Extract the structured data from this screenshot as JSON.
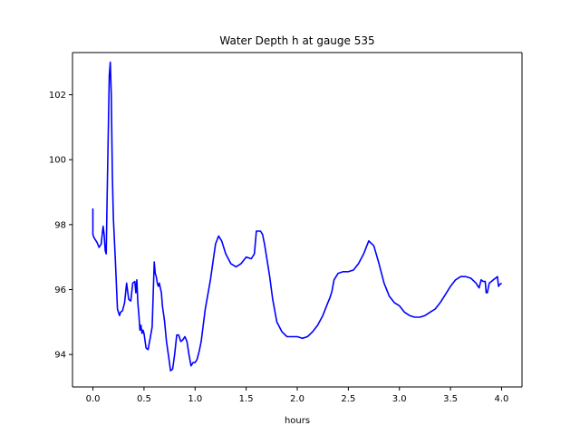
{
  "chart_data": {
    "type": "line",
    "title": "Water Depth h at gauge 535",
    "xlabel": "hours",
    "ylabel": "",
    "xlim": [
      -0.2,
      4.2
    ],
    "ylim": [
      93.0,
      103.3
    ],
    "xticks": [
      0.0,
      0.5,
      1.0,
      1.5,
      2.0,
      2.5,
      3.0,
      3.5,
      4.0
    ],
    "xtick_labels": [
      "0.0",
      "0.5",
      "1.0",
      "1.5",
      "2.0",
      "2.5",
      "3.0",
      "3.5",
      "4.0"
    ],
    "yticks": [
      94,
      96,
      98,
      100,
      102
    ],
    "ytick_labels": [
      "94",
      "96",
      "98",
      "100",
      "102"
    ],
    "grid": false,
    "series": [
      {
        "color": "#0000ff",
        "x": [
          0.0,
          0.0,
          0.01,
          0.04,
          0.06,
          0.08,
          0.1,
          0.11,
          0.12,
          0.13,
          0.14,
          0.16,
          0.17,
          0.18,
          0.19,
          0.2,
          0.22,
          0.24,
          0.26,
          0.27,
          0.29,
          0.31,
          0.33,
          0.35,
          0.37,
          0.39,
          0.41,
          0.42,
          0.43,
          0.44,
          0.45,
          0.46,
          0.47,
          0.48,
          0.49,
          0.5,
          0.52,
          0.54,
          0.56,
          0.58,
          0.6,
          0.61,
          0.62,
          0.63,
          0.64,
          0.65,
          0.66,
          0.67,
          0.68,
          0.7,
          0.72,
          0.74,
          0.76,
          0.78,
          0.8,
          0.82,
          0.84,
          0.86,
          0.88,
          0.9,
          0.92,
          0.94,
          0.96,
          0.98,
          1.0,
          1.02,
          1.04,
          1.06,
          1.1,
          1.15,
          1.2,
          1.23,
          1.26,
          1.3,
          1.35,
          1.4,
          1.45,
          1.5,
          1.55,
          1.58,
          1.6,
          1.62,
          1.64,
          1.66,
          1.68,
          1.7,
          1.73,
          1.76,
          1.8,
          1.85,
          1.9,
          1.95,
          2.0,
          2.05,
          2.1,
          2.15,
          2.2,
          2.25,
          2.3,
          2.32,
          2.34,
          2.36,
          2.4,
          2.45,
          2.5,
          2.55,
          2.6,
          2.65,
          2.7,
          2.75,
          2.8,
          2.85,
          2.9,
          2.95,
          3.0,
          3.05,
          3.1,
          3.15,
          3.2,
          3.25,
          3.3,
          3.35,
          3.4,
          3.45,
          3.5,
          3.55,
          3.6,
          3.65,
          3.7,
          3.75,
          3.77,
          3.78,
          3.8,
          3.82,
          3.84,
          3.85,
          3.86,
          3.88,
          3.9,
          3.92,
          3.94,
          3.96,
          3.97,
          3.98,
          4.0
        ],
        "y": [
          98.5,
          97.7,
          97.6,
          97.45,
          97.3,
          97.4,
          97.95,
          97.7,
          97.2,
          97.1,
          99.0,
          102.6,
          103.0,
          102.0,
          99.5,
          98.2,
          96.9,
          95.4,
          95.2,
          95.3,
          95.35,
          95.6,
          96.2,
          95.7,
          95.65,
          96.2,
          96.25,
          95.9,
          96.3,
          95.6,
          95.2,
          94.75,
          94.9,
          94.65,
          94.75,
          94.65,
          94.2,
          94.15,
          94.5,
          94.85,
          96.85,
          96.5,
          96.4,
          96.2,
          96.1,
          96.2,
          96.05,
          95.9,
          95.5,
          95.05,
          94.4,
          93.95,
          93.5,
          93.55,
          94.0,
          94.6,
          94.6,
          94.4,
          94.45,
          94.55,
          94.4,
          94.0,
          93.65,
          93.75,
          93.75,
          93.85,
          94.1,
          94.4,
          95.4,
          96.3,
          97.4,
          97.65,
          97.5,
          97.1,
          96.8,
          96.7,
          96.8,
          97.0,
          96.95,
          97.1,
          97.8,
          97.8,
          97.8,
          97.7,
          97.4,
          97.0,
          96.4,
          95.7,
          95.0,
          94.7,
          94.55,
          94.55,
          94.55,
          94.5,
          94.55,
          94.7,
          94.9,
          95.2,
          95.6,
          95.75,
          95.95,
          96.3,
          96.5,
          96.55,
          96.55,
          96.6,
          96.8,
          97.1,
          97.5,
          97.35,
          96.8,
          96.2,
          95.8,
          95.6,
          95.5,
          95.3,
          95.2,
          95.15,
          95.15,
          95.2,
          95.3,
          95.4,
          95.6,
          95.85,
          96.1,
          96.3,
          96.4,
          96.4,
          96.35,
          96.2,
          96.1,
          96.05,
          96.3,
          96.25,
          96.25,
          95.9,
          95.9,
          96.2,
          96.25,
          96.3,
          96.35,
          96.4,
          96.1,
          96.15,
          96.2
        ]
      }
    ]
  }
}
